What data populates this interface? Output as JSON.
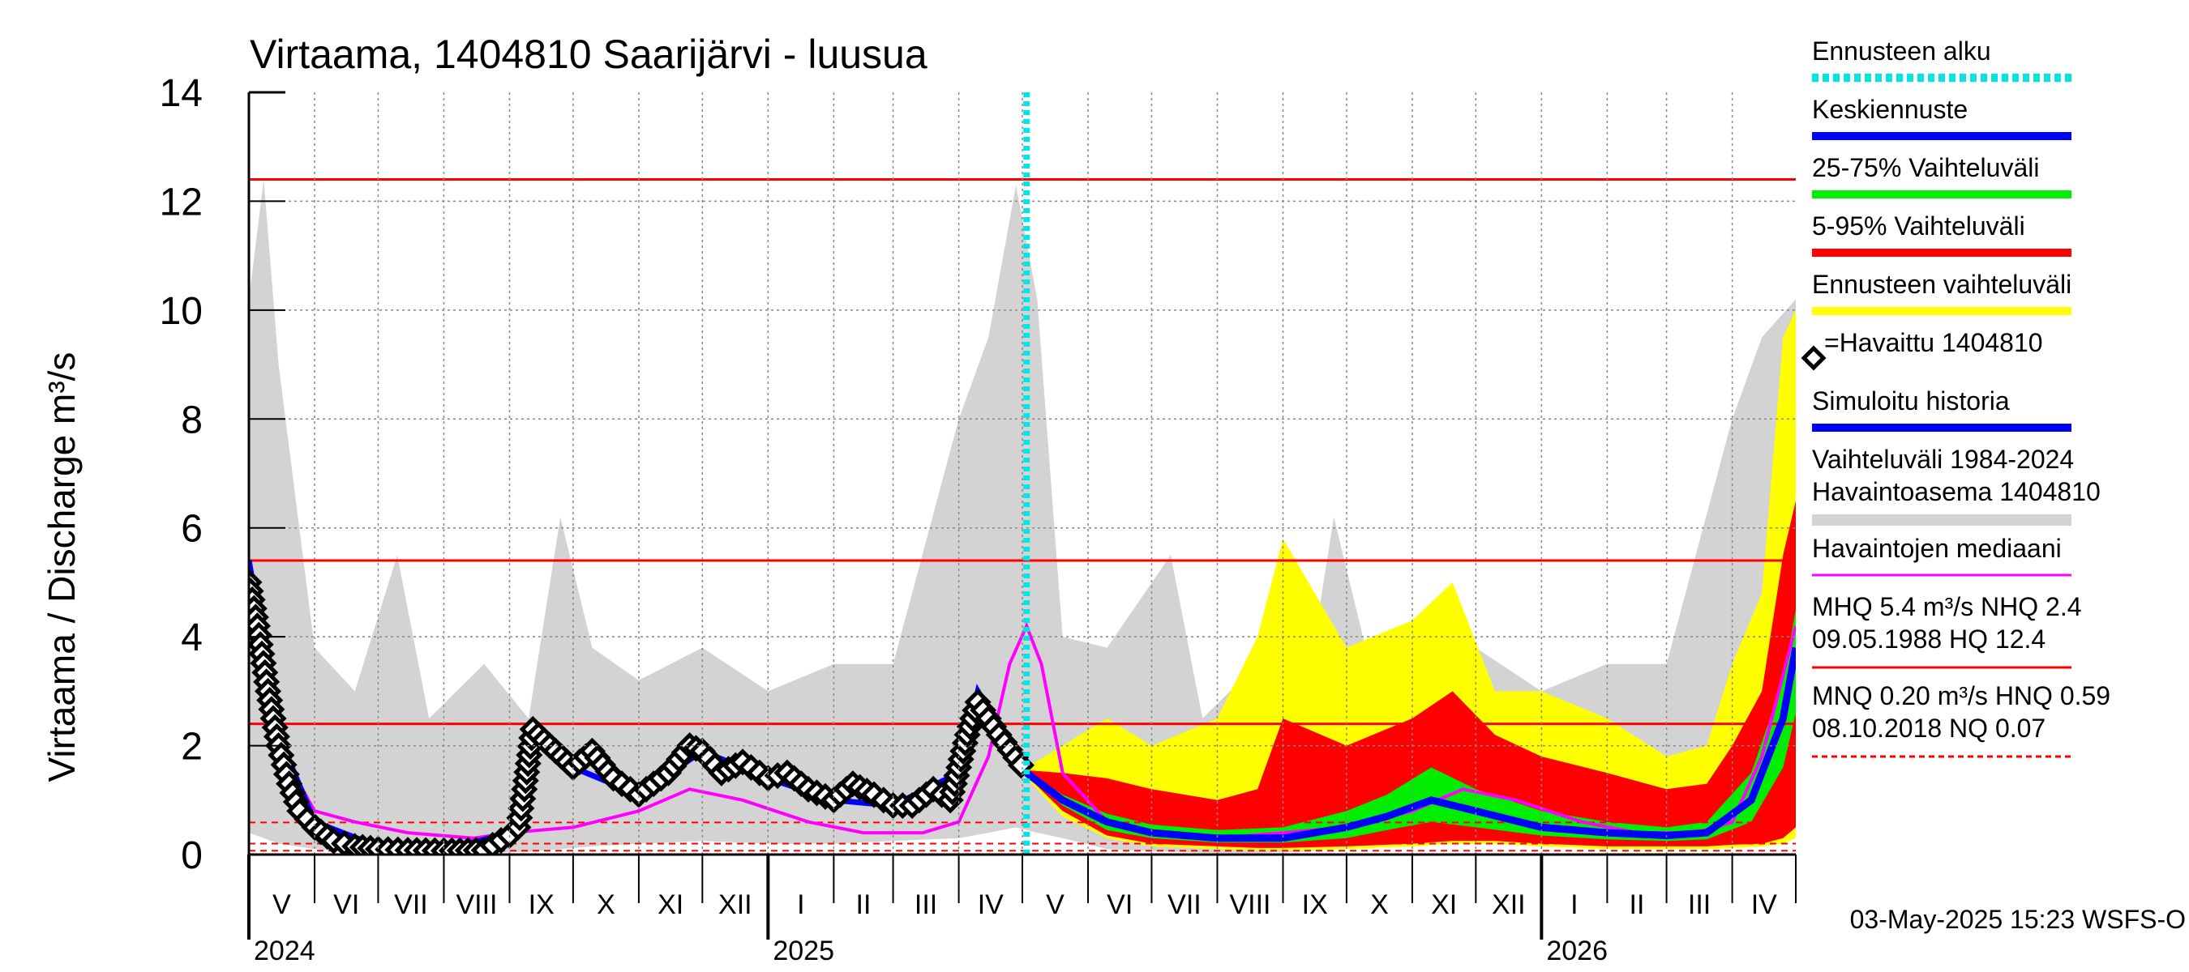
{
  "chart_data": {
    "type": "line",
    "title": "Virtaama, 1404810 Saarijärvi - luusua",
    "ylabel": "Virtaama / Discharge   m³/s",
    "ylim": [
      0,
      14
    ],
    "yticks": [
      "0",
      "2",
      "4",
      "6",
      "8",
      "10",
      "12",
      "14"
    ],
    "months": [
      "V",
      "VI",
      "VII",
      "VIII",
      "IX",
      "X",
      "XI",
      "XII",
      "I",
      "II",
      "III",
      "IV",
      "V",
      "VI",
      "VII",
      "VIII",
      "IX",
      "X",
      "XI",
      "XII",
      "I",
      "II",
      "III",
      "IV"
    ],
    "years": [
      "2024",
      "2025",
      "2026"
    ],
    "x_start": "2024-05-01",
    "x_end": "2026-05-01",
    "forecast_start": "2025-05-03",
    "colors": {
      "forecast_start": "#00e5e5",
      "mean_forecast": "#0000ff",
      "p25_75": "#00ee00",
      "p5_95": "#ff0000",
      "forecast_range": "#ffff00",
      "simulated": "#0000ff",
      "history_range": "#d3d3d3",
      "median": "#ff00ff",
      "reference": "#ff0000"
    },
    "reference_lines": [
      {
        "label": "MHQ",
        "value": 5.4,
        "style": "solid"
      },
      {
        "label": "HQ",
        "value": 12.4,
        "style": "solid"
      },
      {
        "label": "NHQ",
        "value": 2.4,
        "style": "solid"
      },
      {
        "label": "HNQ",
        "value": 0.59,
        "style": "dashed"
      },
      {
        "label": "MNQ",
        "value": 0.2,
        "style": "dashed"
      },
      {
        "label": "NQ",
        "value": 0.07,
        "style": "dashed"
      }
    ],
    "series": [
      {
        "name": "Havaittu 1404810",
        "x": [
          "2024-05-01",
          "2024-05-05",
          "2024-05-10",
          "2024-05-15",
          "2024-05-20",
          "2024-05-25",
          "2024-06-01",
          "2024-06-10",
          "2024-06-20",
          "2024-07-01",
          "2024-07-15",
          "2024-08-01",
          "2024-08-20",
          "2024-09-01",
          "2024-09-05",
          "2024-09-08",
          "2024-09-12",
          "2024-09-20",
          "2024-10-01",
          "2024-10-10",
          "2024-10-20",
          "2024-11-01",
          "2024-11-15",
          "2024-11-25",
          "2024-12-01",
          "2024-12-10",
          "2024-12-20",
          "2025-01-01",
          "2025-01-10",
          "2025-01-20",
          "2025-02-01",
          "2025-02-10",
          "2025-02-20",
          "2025-03-01",
          "2025-03-10",
          "2025-03-20",
          "2025-03-28",
          "2025-04-05",
          "2025-04-10",
          "2025-04-20",
          "2025-05-03"
        ],
        "values": [
          5.0,
          4.2,
          3.0,
          2.0,
          1.3,
          0.8,
          0.5,
          0.25,
          0.15,
          0.1,
          0.08,
          0.07,
          0.08,
          0.35,
          0.5,
          1.2,
          2.3,
          2.0,
          1.6,
          1.9,
          1.4,
          1.1,
          1.5,
          2.0,
          1.9,
          1.5,
          1.7,
          1.4,
          1.5,
          1.2,
          1.0,
          1.3,
          1.1,
          0.9,
          0.9,
          1.2,
          1.0,
          2.2,
          2.8,
          2.2,
          1.5
        ]
      },
      {
        "name": "Keskiennuste",
        "x": [
          "2025-05-03",
          "2025-05-20",
          "2025-06-10",
          "2025-07-01",
          "2025-08-01",
          "2025-09-01",
          "2025-10-01",
          "2025-10-20",
          "2025-11-10",
          "2025-12-01",
          "2026-01-01",
          "2026-02-01",
          "2026-03-01",
          "2026-03-20",
          "2026-04-10",
          "2026-04-25",
          "2026-05-01"
        ],
        "values": [
          1.5,
          1.0,
          0.6,
          0.4,
          0.3,
          0.3,
          0.5,
          0.7,
          1.0,
          0.8,
          0.5,
          0.4,
          0.35,
          0.4,
          1.0,
          2.5,
          3.8
        ]
      },
      {
        "name": "Havaintojen mediaani",
        "x": [
          "2024-05-01",
          "2024-05-05",
          "2024-05-15",
          "2024-06-01",
          "2024-06-20",
          "2024-07-15",
          "2024-08-15",
          "2024-09-01",
          "2024-10-01",
          "2024-11-01",
          "2024-11-25",
          "2024-12-20",
          "2025-01-20",
          "2025-02-15",
          "2025-03-15",
          "2025-04-01",
          "2025-04-15",
          "2025-04-25",
          "2025-05-03",
          "2025-05-10",
          "2025-05-20",
          "2025-06-10",
          "2025-07-01",
          "2025-08-01",
          "2025-09-01",
          "2025-10-01",
          "2025-11-01",
          "2025-11-25",
          "2025-12-20",
          "2026-01-20",
          "2026-02-15",
          "2026-03-15",
          "2026-04-01",
          "2026-04-15",
          "2026-05-01"
        ],
        "values": [
          4.2,
          4.0,
          2.0,
          0.8,
          0.6,
          0.4,
          0.3,
          0.4,
          0.5,
          0.8,
          1.2,
          1.0,
          0.6,
          0.4,
          0.4,
          0.6,
          1.8,
          3.5,
          4.2,
          3.5,
          1.5,
          0.6,
          0.4,
          0.3,
          0.4,
          0.5,
          0.8,
          1.2,
          1.0,
          0.6,
          0.4,
          0.4,
          0.6,
          1.8,
          4.2
        ]
      },
      {
        "name": "Simuloitu historia",
        "x": [
          "2024-05-01",
          "2024-05-05",
          "2024-05-15",
          "2024-06-01",
          "2024-07-01",
          "2024-08-01",
          "2024-09-01",
          "2024-09-10",
          "2024-09-12",
          "2024-10-01",
          "2024-11-01",
          "2024-12-01",
          "2025-01-01",
          "2025-02-01",
          "2025-03-01",
          "2025-04-01",
          "2025-04-10",
          "2025-05-03"
        ],
        "values": [
          5.4,
          4.5,
          2.2,
          0.6,
          0.15,
          0.08,
          0.4,
          1.0,
          2.3,
          1.6,
          1.1,
          1.9,
          1.4,
          1.0,
          0.9,
          1.5,
          3.0,
          1.5
        ]
      }
    ],
    "bands": [
      {
        "name": "Vaihteluväli 1984-2024 Havaintoasema 1404810",
        "x": [
          "2024-05-01",
          "2024-05-08",
          "2024-05-15",
          "2024-06-01",
          "2024-06-20",
          "2024-07-10",
          "2024-07-25",
          "2024-08-20",
          "2024-09-10",
          "2024-09-25",
          "2024-10-10",
          "2024-11-01",
          "2024-12-01",
          "2025-01-01",
          "2025-02-01",
          "2025-03-01",
          "2025-04-01",
          "2025-04-15",
          "2025-04-28",
          "2025-05-08",
          "2025-05-20",
          "2025-06-10",
          "2025-07-10",
          "2025-07-25",
          "2025-08-20",
          "2025-09-10",
          "2025-09-25",
          "2025-10-10",
          "2025-11-01",
          "2025-12-01",
          "2026-01-01",
          "2026-02-01",
          "2026-03-01",
          "2026-04-01",
          "2026-04-15",
          "2026-05-01"
        ],
        "low": [
          0.4,
          0.3,
          0.2,
          0.1,
          0.05,
          0.03,
          0.03,
          0.03,
          0.05,
          0.1,
          0.15,
          0.2,
          0.25,
          0.2,
          0.2,
          0.25,
          0.3,
          0.4,
          0.5,
          0.4,
          0.3,
          0.1,
          0.05,
          0.03,
          0.03,
          0.05,
          0.1,
          0.15,
          0.2,
          0.25,
          0.2,
          0.2,
          0.25,
          0.3,
          0.4,
          0.5
        ],
        "high": [
          10.2,
          12.4,
          9.0,
          3.8,
          3.0,
          5.5,
          2.5,
          3.5,
          2.5,
          6.2,
          3.8,
          3.2,
          3.8,
          3.0,
          3.5,
          3.5,
          8.0,
          9.5,
          12.3,
          10.2,
          4.0,
          3.8,
          5.5,
          2.5,
          3.5,
          2.5,
          6.2,
          3.8,
          3.2,
          3.8,
          3.0,
          3.5,
          3.5,
          8.0,
          9.5,
          10.2
        ]
      },
      {
        "name": "Ennusteen vaihteluväli",
        "x": [
          "2025-05-03",
          "2025-05-20",
          "2025-06-10",
          "2025-07-01",
          "2025-08-01",
          "2025-08-20",
          "2025-09-01",
          "2025-10-01",
          "2025-11-01",
          "2025-11-20",
          "2025-12-10",
          "2026-01-01",
          "2026-02-01",
          "2026-03-01",
          "2026-03-20",
          "2026-04-01",
          "2026-04-15",
          "2026-04-25",
          "2026-05-01"
        ],
        "low": [
          1.4,
          0.7,
          0.3,
          0.15,
          0.1,
          0.08,
          0.08,
          0.1,
          0.15,
          0.2,
          0.2,
          0.15,
          0.1,
          0.1,
          0.1,
          0.12,
          0.15,
          0.2,
          0.3
        ],
        "high": [
          1.6,
          2.0,
          2.5,
          2.0,
          2.5,
          4.0,
          5.8,
          3.8,
          4.3,
          5.0,
          3.0,
          3.0,
          2.5,
          1.8,
          2.0,
          3.5,
          4.8,
          9.5,
          10.0
        ]
      },
      {
        "name": "5-95% Vaihteluväli",
        "x": [
          "2025-05-03",
          "2025-05-20",
          "2025-06-10",
          "2025-07-01",
          "2025-08-01",
          "2025-08-20",
          "2025-09-01",
          "2025-10-01",
          "2025-11-01",
          "2025-11-20",
          "2025-12-10",
          "2026-01-01",
          "2026-02-01",
          "2026-03-01",
          "2026-03-20",
          "2026-04-01",
          "2026-04-15",
          "2026-04-25",
          "2026-05-01"
        ],
        "low": [
          1.45,
          0.8,
          0.35,
          0.2,
          0.15,
          0.12,
          0.12,
          0.15,
          0.2,
          0.25,
          0.25,
          0.2,
          0.15,
          0.15,
          0.15,
          0.18,
          0.2,
          0.3,
          0.5
        ],
        "high": [
          1.55,
          1.5,
          1.4,
          1.2,
          1.0,
          1.2,
          2.5,
          2.0,
          2.5,
          3.0,
          2.2,
          1.8,
          1.5,
          1.2,
          1.3,
          2.0,
          3.0,
          5.5,
          6.5
        ]
      },
      {
        "name": "25-75% Vaihteluväli",
        "x": [
          "2025-05-03",
          "2025-05-20",
          "2025-06-10",
          "2025-07-01",
          "2025-08-01",
          "2025-09-01",
          "2025-10-01",
          "2025-10-20",
          "2025-11-10",
          "2025-12-01",
          "2026-01-01",
          "2026-02-01",
          "2026-03-01",
          "2026-03-20",
          "2026-04-10",
          "2026-04-25",
          "2026-05-01"
        ],
        "low": [
          1.48,
          0.9,
          0.45,
          0.3,
          0.22,
          0.22,
          0.3,
          0.45,
          0.6,
          0.5,
          0.35,
          0.28,
          0.25,
          0.28,
          0.6,
          1.6,
          2.6
        ],
        "high": [
          1.52,
          1.1,
          0.75,
          0.55,
          0.45,
          0.5,
          0.8,
          1.1,
          1.6,
          1.2,
          0.8,
          0.6,
          0.5,
          0.6,
          1.5,
          3.2,
          4.5
        ]
      }
    ],
    "legend": [
      {
        "label": "Ennusteen alku",
        "key": "forecast_start",
        "style": "dotted"
      },
      {
        "label": "Keskiennuste",
        "key": "mean_forecast",
        "style": "line"
      },
      {
        "label": "25-75% Vaihteluväli",
        "key": "p25_75",
        "style": "line"
      },
      {
        "label": "5-95% Vaihteluväli",
        "key": "p5_95",
        "style": "line"
      },
      {
        "label": "Ennusteen vaihteluväli",
        "key": "forecast_range",
        "style": "line"
      },
      {
        "label": "=Havaittu 1404810",
        "key": "observed",
        "style": "diamond"
      },
      {
        "label": "Simuloitu historia",
        "key": "simulated",
        "style": "line"
      },
      {
        "label": "Vaihteluväli 1984-2024",
        "label2": " Havaintoasema 1404810",
        "key": "history_range",
        "style": "line"
      },
      {
        "label": "Havaintojen mediaani",
        "key": "median",
        "style": "thin"
      },
      {
        "label": "MHQ  5.4 m³/s NHQ  2.4",
        "label2": "09.05.1988 HQ 12.4",
        "key": "reference",
        "style": "thin"
      },
      {
        "label": "MNQ 0.20 m³/s HNQ 0.59",
        "label2": "08.10.2018 NQ 0.07",
        "key": "reference",
        "style": "dashed"
      }
    ],
    "footer": "03-May-2025 15:23 WSFS-O"
  }
}
